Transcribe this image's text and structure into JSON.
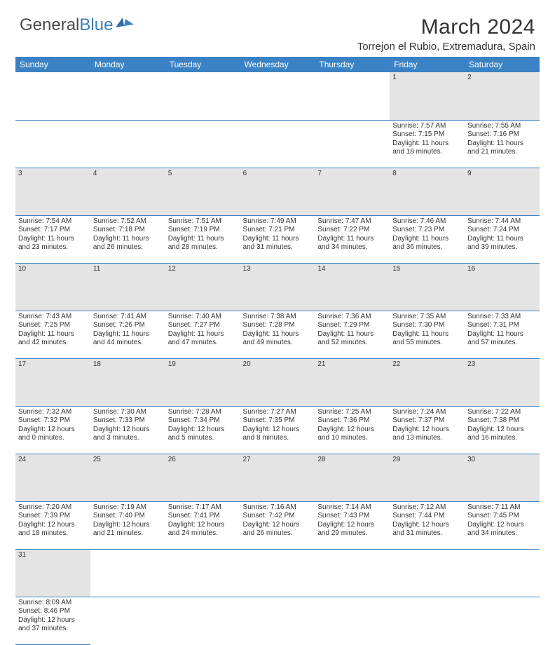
{
  "logo": {
    "text1": "General",
    "text2": "Blue"
  },
  "title": "March 2024",
  "location": "Torrejon el Rubio, Extremadura, Spain",
  "colors": {
    "header_bg": "#3a82c4",
    "header_fg": "#ffffff",
    "daynum_bg": "#e4e4e4",
    "border": "#3a82c4",
    "logo_gray": "#4a4a4a",
    "logo_blue": "#3a7fb8"
  },
  "weekdays": [
    "Sunday",
    "Monday",
    "Tuesday",
    "Wednesday",
    "Thursday",
    "Friday",
    "Saturday"
  ],
  "weeks": [
    {
      "nums": [
        "",
        "",
        "",
        "",
        "",
        "1",
        "2"
      ],
      "cells": [
        null,
        null,
        null,
        null,
        null,
        {
          "sr": "Sunrise: 7:57 AM",
          "ss": "Sunset: 7:15 PM",
          "d1": "Daylight: 11 hours",
          "d2": "and 18 minutes."
        },
        {
          "sr": "Sunrise: 7:55 AM",
          "ss": "Sunset: 7:16 PM",
          "d1": "Daylight: 11 hours",
          "d2": "and 21 minutes."
        }
      ]
    },
    {
      "nums": [
        "3",
        "4",
        "5",
        "6",
        "7",
        "8",
        "9"
      ],
      "cells": [
        {
          "sr": "Sunrise: 7:54 AM",
          "ss": "Sunset: 7:17 PM",
          "d1": "Daylight: 11 hours",
          "d2": "and 23 minutes."
        },
        {
          "sr": "Sunrise: 7:52 AM",
          "ss": "Sunset: 7:18 PM",
          "d1": "Daylight: 11 hours",
          "d2": "and 26 minutes."
        },
        {
          "sr": "Sunrise: 7:51 AM",
          "ss": "Sunset: 7:19 PM",
          "d1": "Daylight: 11 hours",
          "d2": "and 28 minutes."
        },
        {
          "sr": "Sunrise: 7:49 AM",
          "ss": "Sunset: 7:21 PM",
          "d1": "Daylight: 11 hours",
          "d2": "and 31 minutes."
        },
        {
          "sr": "Sunrise: 7:47 AM",
          "ss": "Sunset: 7:22 PM",
          "d1": "Daylight: 11 hours",
          "d2": "and 34 minutes."
        },
        {
          "sr": "Sunrise: 7:46 AM",
          "ss": "Sunset: 7:23 PM",
          "d1": "Daylight: 11 hours",
          "d2": "and 36 minutes."
        },
        {
          "sr": "Sunrise: 7:44 AM",
          "ss": "Sunset: 7:24 PM",
          "d1": "Daylight: 11 hours",
          "d2": "and 39 minutes."
        }
      ]
    },
    {
      "nums": [
        "10",
        "11",
        "12",
        "13",
        "14",
        "15",
        "16"
      ],
      "cells": [
        {
          "sr": "Sunrise: 7:43 AM",
          "ss": "Sunset: 7:25 PM",
          "d1": "Daylight: 11 hours",
          "d2": "and 42 minutes."
        },
        {
          "sr": "Sunrise: 7:41 AM",
          "ss": "Sunset: 7:26 PM",
          "d1": "Daylight: 11 hours",
          "d2": "and 44 minutes."
        },
        {
          "sr": "Sunrise: 7:40 AM",
          "ss": "Sunset: 7:27 PM",
          "d1": "Daylight: 11 hours",
          "d2": "and 47 minutes."
        },
        {
          "sr": "Sunrise: 7:38 AM",
          "ss": "Sunset: 7:28 PM",
          "d1": "Daylight: 11 hours",
          "d2": "and 49 minutes."
        },
        {
          "sr": "Sunrise: 7:36 AM",
          "ss": "Sunset: 7:29 PM",
          "d1": "Daylight: 11 hours",
          "d2": "and 52 minutes."
        },
        {
          "sr": "Sunrise: 7:35 AM",
          "ss": "Sunset: 7:30 PM",
          "d1": "Daylight: 11 hours",
          "d2": "and 55 minutes."
        },
        {
          "sr": "Sunrise: 7:33 AM",
          "ss": "Sunset: 7:31 PM",
          "d1": "Daylight: 11 hours",
          "d2": "and 57 minutes."
        }
      ]
    },
    {
      "nums": [
        "17",
        "18",
        "19",
        "20",
        "21",
        "22",
        "23"
      ],
      "cells": [
        {
          "sr": "Sunrise: 7:32 AM",
          "ss": "Sunset: 7:32 PM",
          "d1": "Daylight: 12 hours",
          "d2": "and 0 minutes."
        },
        {
          "sr": "Sunrise: 7:30 AM",
          "ss": "Sunset: 7:33 PM",
          "d1": "Daylight: 12 hours",
          "d2": "and 3 minutes."
        },
        {
          "sr": "Sunrise: 7:28 AM",
          "ss": "Sunset: 7:34 PM",
          "d1": "Daylight: 12 hours",
          "d2": "and 5 minutes."
        },
        {
          "sr": "Sunrise: 7:27 AM",
          "ss": "Sunset: 7:35 PM",
          "d1": "Daylight: 12 hours",
          "d2": "and 8 minutes."
        },
        {
          "sr": "Sunrise: 7:25 AM",
          "ss": "Sunset: 7:36 PM",
          "d1": "Daylight: 12 hours",
          "d2": "and 10 minutes."
        },
        {
          "sr": "Sunrise: 7:24 AM",
          "ss": "Sunset: 7:37 PM",
          "d1": "Daylight: 12 hours",
          "d2": "and 13 minutes."
        },
        {
          "sr": "Sunrise: 7:22 AM",
          "ss": "Sunset: 7:38 PM",
          "d1": "Daylight: 12 hours",
          "d2": "and 16 minutes."
        }
      ]
    },
    {
      "nums": [
        "24",
        "25",
        "26",
        "27",
        "28",
        "29",
        "30"
      ],
      "cells": [
        {
          "sr": "Sunrise: 7:20 AM",
          "ss": "Sunset: 7:39 PM",
          "d1": "Daylight: 12 hours",
          "d2": "and 18 minutes."
        },
        {
          "sr": "Sunrise: 7:19 AM",
          "ss": "Sunset: 7:40 PM",
          "d1": "Daylight: 12 hours",
          "d2": "and 21 minutes."
        },
        {
          "sr": "Sunrise: 7:17 AM",
          "ss": "Sunset: 7:41 PM",
          "d1": "Daylight: 12 hours",
          "d2": "and 24 minutes."
        },
        {
          "sr": "Sunrise: 7:16 AM",
          "ss": "Sunset: 7:42 PM",
          "d1": "Daylight: 12 hours",
          "d2": "and 26 minutes."
        },
        {
          "sr": "Sunrise: 7:14 AM",
          "ss": "Sunset: 7:43 PM",
          "d1": "Daylight: 12 hours",
          "d2": "and 29 minutes."
        },
        {
          "sr": "Sunrise: 7:12 AM",
          "ss": "Sunset: 7:44 PM",
          "d1": "Daylight: 12 hours",
          "d2": "and 31 minutes."
        },
        {
          "sr": "Sunrise: 7:11 AM",
          "ss": "Sunset: 7:45 PM",
          "d1": "Daylight: 12 hours",
          "d2": "and 34 minutes."
        }
      ]
    },
    {
      "nums": [
        "31",
        "",
        "",
        "",
        "",
        "",
        ""
      ],
      "cells": [
        {
          "sr": "Sunrise: 8:09 AM",
          "ss": "Sunset: 8:46 PM",
          "d1": "Daylight: 12 hours",
          "d2": "and 37 minutes."
        },
        null,
        null,
        null,
        null,
        null,
        null
      ]
    }
  ]
}
